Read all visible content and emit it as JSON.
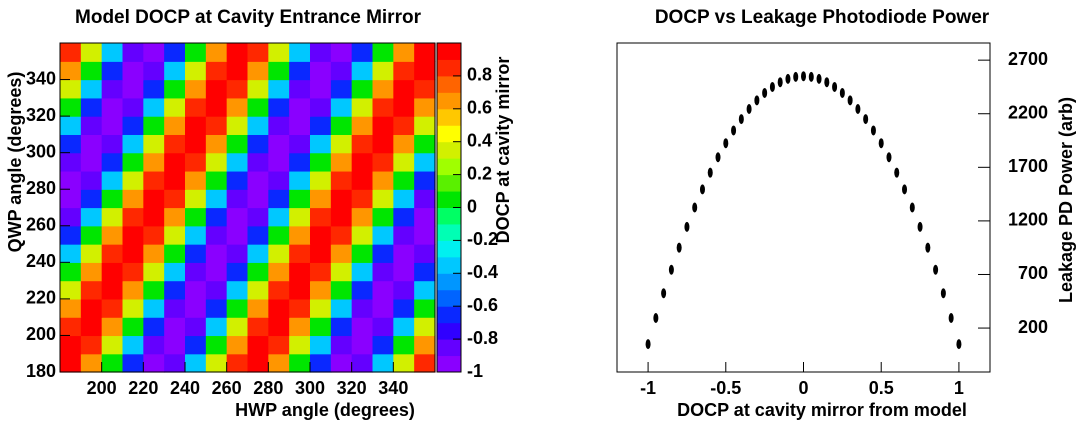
{
  "chart_data": [
    {
      "type": "heatmap",
      "title": "Model DOCP at Cavity Entrance Mirror",
      "x_label": "HWP angle  (degrees)",
      "y_label": "QWP angle  (degrees)",
      "z_label": "DOCP at cavity mirror",
      "xlim": [
        180,
        360
      ],
      "ylim": [
        180,
        360
      ],
      "zlim": [
        -1,
        1
      ],
      "xticks": [
        200,
        220,
        240,
        260,
        280,
        300,
        320,
        340
      ],
      "yticks": [
        180,
        200,
        220,
        240,
        260,
        280,
        300,
        320,
        340
      ],
      "zticks": [
        -1,
        -0.8,
        -0.6,
        -0.4,
        -0.2,
        0,
        0.2,
        0.4,
        0.6,
        0.8
      ],
      "colors": [
        "#8a00ff",
        "#6400ff",
        "#3000ff",
        "#0a28ff",
        "#0064ff",
        "#0096ff",
        "#00c8ff",
        "#00f0f0",
        "#00ffb4",
        "#00ff64",
        "#00e600",
        "#5af000",
        "#a0ff00",
        "#d2f000",
        "#ffff00",
        "#ffc800",
        "#ff9600",
        "#ff6400",
        "#ff2800",
        "#ff0000"
      ],
      "x": [
        185,
        195,
        205,
        215,
        225,
        235,
        245,
        255,
        265,
        275,
        285,
        295,
        305,
        315,
        325,
        335,
        345,
        355
      ],
      "y": [
        185,
        195,
        205,
        215,
        225,
        235,
        245,
        255,
        265,
        275,
        285,
        295,
        305,
        315,
        325,
        335,
        345,
        355
      ],
      "z": [
        [
          0.98,
          0.64,
          0,
          -0.64,
          -0.98,
          -0.87,
          -0.34,
          0.34,
          0.87,
          0.98,
          0.64,
          0,
          -0.64,
          -0.98,
          -0.87,
          -0.34,
          0.34,
          0.87
        ],
        [
          0.98,
          0.87,
          0.34,
          -0.34,
          -0.87,
          -0.98,
          -0.64,
          0,
          0.64,
          0.98,
          0.87,
          0.34,
          -0.34,
          -0.87,
          -0.98,
          -0.64,
          0,
          0.64
        ],
        [
          0.87,
          0.98,
          0.64,
          0,
          -0.64,
          -0.98,
          -0.87,
          -0.34,
          0.34,
          0.87,
          0.98,
          0.64,
          0,
          -0.64,
          -0.98,
          -0.87,
          -0.34,
          0.34
        ],
        [
          0.64,
          0.98,
          0.87,
          0.34,
          -0.34,
          -0.87,
          -0.98,
          -0.64,
          0,
          0.64,
          0.98,
          0.87,
          0.34,
          -0.34,
          -0.87,
          -0.98,
          -0.64,
          0
        ],
        [
          0.34,
          0.87,
          0.98,
          0.64,
          0,
          -0.64,
          -0.98,
          -0.87,
          -0.34,
          0.34,
          0.87,
          0.98,
          0.64,
          0,
          -0.64,
          -0.98,
          -0.87,
          -0.34
        ],
        [
          0,
          0.64,
          0.98,
          0.87,
          0.34,
          -0.34,
          -0.87,
          -0.98,
          -0.64,
          0,
          0.64,
          0.98,
          0.87,
          0.34,
          -0.34,
          -0.87,
          -0.98,
          -0.64
        ],
        [
          -0.34,
          0.34,
          0.87,
          0.98,
          0.64,
          0,
          -0.64,
          -0.98,
          -0.87,
          -0.34,
          0.34,
          0.87,
          0.98,
          0.64,
          0,
          -0.64,
          -0.98,
          -0.87
        ],
        [
          -0.64,
          0,
          0.64,
          0.98,
          0.87,
          0.34,
          -0.34,
          -0.87,
          -0.98,
          -0.64,
          0,
          0.64,
          0.98,
          0.87,
          0.34,
          -0.34,
          -0.87,
          -0.98
        ],
        [
          -0.87,
          -0.34,
          0.34,
          0.87,
          0.98,
          0.64,
          0,
          -0.64,
          -0.98,
          -0.87,
          -0.34,
          0.34,
          0.87,
          0.98,
          0.64,
          0,
          -0.64,
          -0.98
        ],
        [
          -0.98,
          -0.64,
          0,
          0.64,
          0.98,
          0.87,
          0.34,
          -0.34,
          -0.87,
          -0.98,
          -0.64,
          0,
          0.64,
          0.98,
          0.87,
          0.34,
          -0.34,
          -0.87
        ],
        [
          -0.98,
          -0.87,
          -0.34,
          0.34,
          0.87,
          0.98,
          0.64,
          0,
          -0.64,
          -0.98,
          -0.87,
          -0.34,
          0.34,
          0.87,
          0.98,
          0.64,
          0,
          -0.64
        ],
        [
          -0.87,
          -0.98,
          -0.64,
          0,
          0.64,
          0.98,
          0.87,
          0.34,
          -0.34,
          -0.87,
          -0.98,
          -0.64,
          0,
          0.64,
          0.98,
          0.87,
          0.34,
          -0.34
        ],
        [
          -0.64,
          -0.98,
          -0.87,
          -0.34,
          0.34,
          0.87,
          0.98,
          0.64,
          0,
          -0.64,
          -0.98,
          -0.87,
          -0.34,
          0.34,
          0.87,
          0.98,
          0.64,
          0
        ],
        [
          -0.34,
          -0.87,
          -0.98,
          -0.64,
          0,
          0.64,
          0.98,
          0.87,
          0.34,
          -0.34,
          -0.87,
          -0.98,
          -0.64,
          0,
          0.64,
          0.98,
          0.87,
          0.34
        ],
        [
          0,
          -0.64,
          -0.98,
          -0.87,
          -0.34,
          0.34,
          0.87,
          0.98,
          0.64,
          0,
          -0.64,
          -0.98,
          -0.87,
          -0.34,
          0.34,
          0.87,
          0.98,
          0.64
        ],
        [
          0.34,
          -0.34,
          -0.87,
          -0.98,
          -0.64,
          0,
          0.64,
          0.98,
          0.87,
          0.34,
          -0.34,
          -0.87,
          -0.98,
          -0.64,
          0,
          0.64,
          0.98,
          0.87
        ],
        [
          0.64,
          0,
          -0.64,
          -0.98,
          -0.87,
          -0.34,
          0.34,
          0.87,
          0.98,
          0.64,
          0,
          -0.64,
          -0.98,
          -0.87,
          -0.34,
          0.34,
          0.87,
          0.98
        ],
        [
          0.87,
          0.34,
          -0.34,
          -0.87,
          -0.98,
          -0.64,
          0,
          0.64,
          0.98,
          0.87,
          0.34,
          -0.34,
          -0.87,
          -0.98,
          -0.64,
          0,
          0.64,
          0.98
        ]
      ]
    },
    {
      "type": "scatter",
      "title": "DOCP vs Leakage Photodiode Power",
      "x_label": "DOCP at cavity mirror from model",
      "y_label": "Leakage PD Power (arb)",
      "xlim": [
        -1.2,
        1.2
      ],
      "ylim": [
        -210,
        2860
      ],
      "xticks": [
        -1,
        -0.5,
        0,
        0.5,
        1
      ],
      "yticks": [
        200,
        700,
        1200,
        1700,
        2200,
        2700
      ],
      "color": "#000000",
      "x": [
        -1,
        -0.95,
        -0.9,
        -0.85,
        -0.8,
        -0.75,
        -0.7,
        -0.65,
        -0.6,
        -0.55,
        -0.5,
        -0.45,
        -0.4,
        -0.35,
        -0.3,
        -0.25,
        -0.2,
        -0.15,
        -0.1,
        -0.05,
        0,
        0.05,
        0.1,
        0.15,
        0.2,
        0.25,
        0.3,
        0.35,
        0.4,
        0.45,
        0.5,
        0.55,
        0.6,
        0.65,
        0.7,
        0.75,
        0.8,
        0.85,
        0.9,
        0.95,
        1
      ],
      "values": [
        50,
        294,
        525,
        744,
        950,
        1144,
        1325,
        1494,
        1650,
        1794,
        1925,
        2044,
        2150,
        2244,
        2325,
        2394,
        2450,
        2494,
        2525,
        2544,
        2550,
        2544,
        2525,
        2494,
        2450,
        2394,
        2325,
        2244,
        2150,
        2044,
        1925,
        1794,
        1650,
        1494,
        1325,
        1144,
        950,
        744,
        525,
        294,
        50
      ]
    }
  ]
}
